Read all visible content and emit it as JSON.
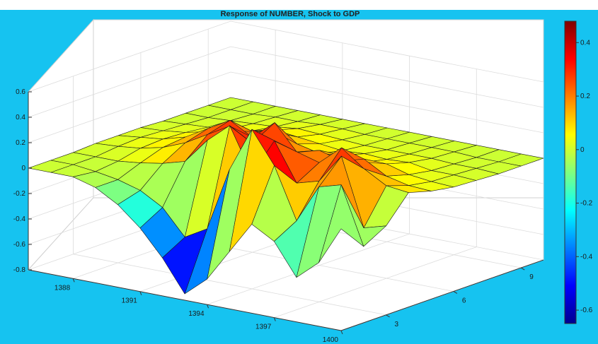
{
  "header_strip_text": "",
  "colors": {
    "background": "#16c3f0",
    "axes_box": "#ffffff",
    "edge": "#1a1a1a"
  },
  "chart_data": {
    "type": "surface",
    "title": "Response of NUMBER, Shock to GDP",
    "xlabel": "",
    "ylabel": "",
    "zlabel": "",
    "colormap": "jet",
    "x_ticks": [
      "1400",
      "1397",
      "1394",
      "1391",
      "1388"
    ],
    "x_range": [
      1386,
      1400
    ],
    "y_ticks": [
      "3",
      "6",
      "9"
    ],
    "y_range": [
      1,
      10
    ],
    "z_ticks": [
      "0.6",
      "0.4",
      "0.2",
      "0",
      "-0.2",
      "-0.4",
      "-0.6",
      "-0.8"
    ],
    "zlim": [
      -0.8,
      0.6
    ],
    "colorbar_ticks": [
      "0.4",
      "0.2",
      "0",
      "-0.2",
      "-0.4",
      "-0.6"
    ],
    "colorbar_range": [
      -0.65,
      0.48
    ],
    "grid": true,
    "surface": {
      "years": [
        1400,
        1399,
        1398,
        1397,
        1396,
        1395,
        1394,
        1393,
        1392,
        1391,
        1390,
        1389,
        1388,
        1387,
        1386
      ],
      "horizons": [
        1,
        2,
        3,
        4,
        5,
        6,
        7,
        8,
        9,
        10
      ],
      "z": [
        [
          0.0,
          -0.2,
          -0.1,
          0.1,
          0.05,
          0.02,
          0.01,
          0.0,
          0.0,
          0.0
        ],
        [
          -0.3,
          0.25,
          -0.15,
          0.12,
          0.06,
          0.03,
          0.02,
          0.01,
          0.0,
          0.0
        ],
        [
          -0.45,
          0.2,
          0.38,
          0.22,
          0.1,
          0.05,
          0.02,
          0.01,
          0.0,
          0.0
        ],
        [
          -0.2,
          -0.1,
          0.15,
          0.35,
          0.2,
          0.1,
          0.05,
          0.02,
          0.01,
          0.0
        ],
        [
          -0.1,
          0.3,
          0.1,
          0.2,
          0.15,
          0.08,
          0.04,
          0.02,
          0.01,
          0.0
        ],
        [
          -0.35,
          0.55,
          0.4,
          0.25,
          0.2,
          0.1,
          0.05,
          0.02,
          0.01,
          0.0
        ],
        [
          -0.6,
          0.2,
          0.1,
          0.3,
          0.15,
          0.08,
          0.04,
          0.02,
          0.01,
          0.0
        ],
        [
          -0.75,
          -0.3,
          0.45,
          0.25,
          0.35,
          0.12,
          0.06,
          0.03,
          0.01,
          0.0
        ],
        [
          -0.5,
          -0.4,
          0.3,
          0.35,
          0.2,
          0.18,
          0.08,
          0.04,
          0.02,
          0.0
        ],
        [
          -0.3,
          -0.2,
          0.1,
          0.25,
          0.3,
          0.15,
          0.1,
          0.05,
          0.02,
          0.0
        ],
        [
          -0.15,
          -0.1,
          0.05,
          0.15,
          0.2,
          0.12,
          0.06,
          0.03,
          0.01,
          0.0
        ],
        [
          -0.05,
          -0.05,
          0.02,
          0.08,
          0.1,
          0.08,
          0.04,
          0.02,
          0.01,
          0.0
        ],
        [
          0.0,
          -0.02,
          0.0,
          0.04,
          0.05,
          0.04,
          0.02,
          0.01,
          0.0,
          0.0
        ],
        [
          0.0,
          0.0,
          0.0,
          0.02,
          0.03,
          0.02,
          0.01,
          0.0,
          0.0,
          0.0
        ],
        [
          0.0,
          0.0,
          0.0,
          0.01,
          0.01,
          0.01,
          0.0,
          0.0,
          0.0,
          0.0
        ]
      ]
    }
  }
}
